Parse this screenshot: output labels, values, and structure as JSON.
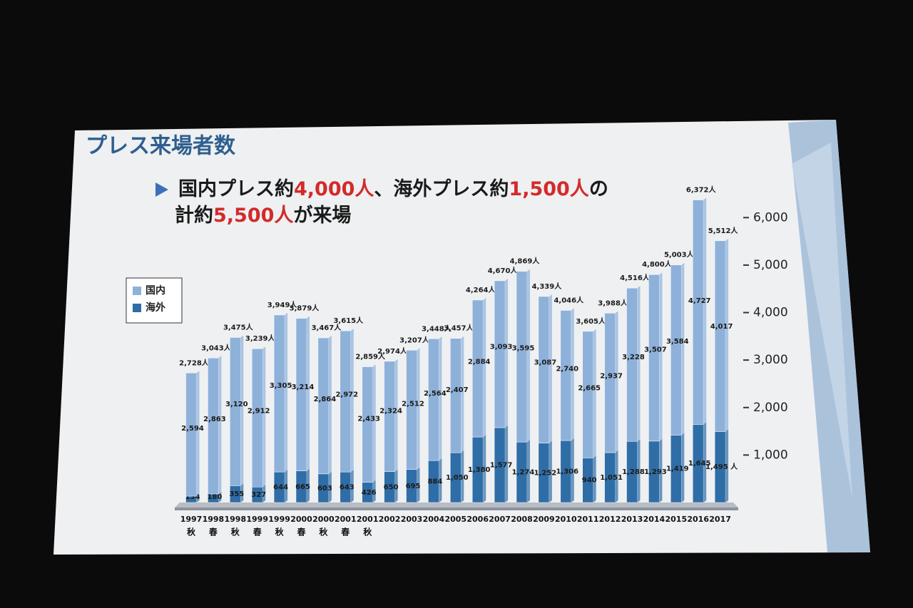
{
  "title": "プレス来場者数",
  "headline": {
    "lines": [
      [
        {
          "text": "国内プレス約",
          "color": "#1a1a1a"
        },
        {
          "text": "4,000人",
          "color": "#d42a2a"
        },
        {
          "text": "、海外プレス約",
          "color": "#1a1a1a"
        },
        {
          "text": "1,500人",
          "color": "#d42a2a"
        },
        {
          "text": "の",
          "color": "#1a1a1a"
        }
      ],
      [
        {
          "text": "計約",
          "color": "#1a1a1a"
        },
        {
          "text": "5,500人",
          "color": "#d42a2a"
        },
        {
          "text": "が来場",
          "color": "#1a1a1a"
        }
      ]
    ]
  },
  "chart_data": {
    "type": "stacked-bar",
    "categories": [
      "1997",
      "1998",
      "1998",
      "1999",
      "1999",
      "2000",
      "2000",
      "2001",
      "2001",
      "2002",
      "2003",
      "2004",
      "2005",
      "2006",
      "2007",
      "2008",
      "2009",
      "2010",
      "2011",
      "2012",
      "2013",
      "2014",
      "2015",
      "2016",
      "2017"
    ],
    "seasons": [
      "秋",
      "春",
      "秋",
      "春",
      "秋",
      "春",
      "秋",
      "春",
      "秋",
      null,
      null,
      null,
      null,
      null,
      null,
      null,
      null,
      null,
      null,
      null,
      null,
      null,
      null,
      null,
      null
    ],
    "series": [
      {
        "name": "海外",
        "color": "#2f6da6",
        "values": [
          134,
          180,
          355,
          327,
          644,
          665,
          603,
          643,
          426,
          650,
          695,
          884,
          1050,
          1380,
          1577,
          1274,
          1252,
          1306,
          940,
          1051,
          1288,
          1293,
          1419,
          1645,
          1495
        ],
        "value_labels": [
          "134",
          "180",
          "355",
          "327",
          "644",
          "665",
          "603",
          "643",
          "426",
          "650",
          "695",
          "884",
          "1,050",
          "1,380",
          "1,577",
          "1,274",
          "1,252",
          "1,306",
          "940",
          "1,051",
          "1,288",
          "1,293",
          "1,419",
          "1,645",
          "1,495 人"
        ]
      },
      {
        "name": "国内",
        "color": "#8eb1da",
        "values": [
          2594,
          2863,
          3120,
          2912,
          3305,
          3214,
          2864,
          2972,
          2433,
          2324,
          2512,
          2564,
          2407,
          2884,
          3093,
          3595,
          3087,
          2740,
          2665,
          2937,
          3228,
          3507,
          3584,
          4727,
          4017
        ],
        "value_labels": [
          "2,594",
          "2,863",
          "3,120",
          "2,912",
          "3,305",
          "3,214",
          "2,864",
          "2,972",
          "2,433",
          "2,324",
          "2,512",
          "2,564",
          "2,407",
          "2,884",
          "3,093",
          "3,595",
          "3,087",
          "2,740",
          "2,665",
          "2,937",
          "3,228",
          "3,507",
          "3,584",
          "4,727",
          "4,017"
        ]
      }
    ],
    "totals": [
      2728,
      3043,
      3475,
      3239,
      3949,
      3879,
      3467,
      3615,
      2859,
      2974,
      3207,
      3448,
      3457,
      4264,
      4670,
      4869,
      4339,
      4046,
      3605,
      3988,
      4516,
      4800,
      5003,
      6372,
      5512
    ],
    "total_labels": [
      "2,728人",
      "3,043人",
      "3,475人",
      "3,239人",
      "3,949人",
      "3,879人",
      "3,467人",
      "3,615人",
      "2,859人",
      "2,974人",
      "3,207人",
      "3,448人",
      "3,457人",
      "4,264人",
      "4,670人",
      "4,869人",
      "4,339人",
      "4,046人",
      "3,605人",
      "3,988人",
      "4,516人",
      "4,800人",
      "5,003人",
      "6,372人",
      "5,512人"
    ],
    "ylim": [
      0,
      6500
    ],
    "yticks": [
      {
        "value": 1000,
        "label": "1,000"
      },
      {
        "value": 2000,
        "label": "2,000"
      },
      {
        "value": 3000,
        "label": "3,000"
      },
      {
        "value": 4000,
        "label": "4,000"
      },
      {
        "value": 5000,
        "label": "5,000"
      },
      {
        "value": 6000,
        "label": "6,000"
      }
    ],
    "legend": "top-left"
  }
}
